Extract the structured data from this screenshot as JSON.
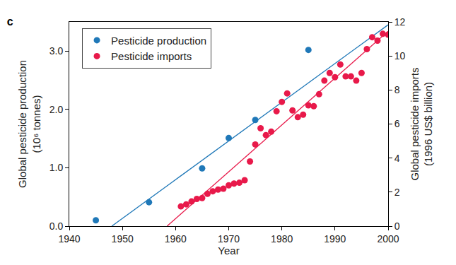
{
  "chart_data": {
    "type": "scatter",
    "title": "c",
    "x_label": "Year",
    "y_label": "Global pesticide production (10⁶ tonnes)",
    "y2_label": "Global pesticide imports (1996 US$ billion)",
    "xlim": [
      1940,
      2000
    ],
    "xticks": [
      1940,
      1950,
      1960,
      1970,
      1980,
      1990,
      2000
    ],
    "ylim": [
      0,
      3.5
    ],
    "yticks": [
      {
        "value": 0,
        "label": "0.0"
      },
      {
        "value": 1,
        "label": "1.0"
      },
      {
        "value": 2,
        "label": "2.0"
      },
      {
        "value": 3,
        "label": "3.0"
      }
    ],
    "y2lim": [
      0,
      12
    ],
    "y2ticks": [
      0,
      2,
      4,
      6,
      8,
      10,
      12
    ],
    "grid": false,
    "legend": "upper left",
    "series": [
      {
        "name": "Pesticide production",
        "type": "scatter",
        "marker": "circle",
        "color": "#1f78b8",
        "x": [
          1945,
          1955,
          1965,
          1970,
          1975,
          1985
        ],
        "values": [
          0.1,
          0.41,
          0.99,
          1.51,
          1.82,
          3.02
        ]
      },
      {
        "name": "Pesticide imports",
        "type": "scatter",
        "marker": "circle",
        "axis": "y2",
        "color": "#e8194a",
        "x": [
          1961,
          1962,
          1963,
          1964,
          1965,
          1966,
          1967,
          1968,
          1969,
          1970,
          1971,
          1972,
          1973,
          1974,
          1975,
          1976,
          1977,
          1978,
          1979,
          1980,
          1981,
          1982,
          1983,
          1984,
          1985,
          1986,
          1987,
          1988,
          1989,
          1990,
          1991,
          1992,
          1993,
          1994,
          1995,
          1996,
          1997,
          1998,
          1999,
          2000
        ],
        "values": [
          1.16,
          1.28,
          1.45,
          1.6,
          1.65,
          1.9,
          2.05,
          2.15,
          2.2,
          2.4,
          2.5,
          2.55,
          2.7,
          3.8,
          4.8,
          5.75,
          5.35,
          5.55,
          6.75,
          7.3,
          7.8,
          6.8,
          6.4,
          6.55,
          7.1,
          7.05,
          7.75,
          8.55,
          9.0,
          8.75,
          9.5,
          8.8,
          8.8,
          8.55,
          9.0,
          10.4,
          11.1,
          10.9,
          11.3,
          11.25
        ]
      },
      {
        "type": "line",
        "line_style": "solid",
        "color": "#1f78b8",
        "x": [
          1948,
          2000
        ],
        "values": [
          0,
          3.45
        ]
      },
      {
        "type": "line",
        "line_style": "solid",
        "axis": "y2",
        "color": "#e8194a",
        "x": [
          1958.4,
          2000
        ],
        "values": [
          0,
          11.45
        ]
      }
    ]
  }
}
